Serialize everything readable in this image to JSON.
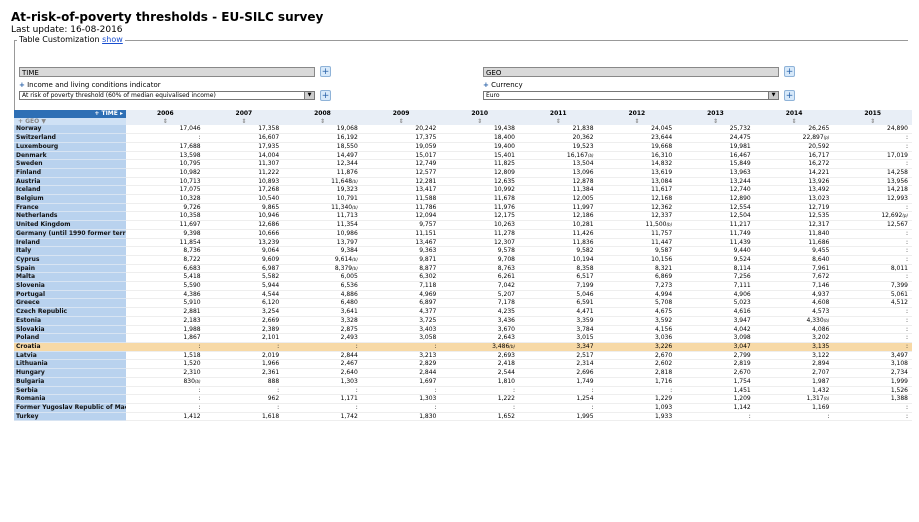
{
  "page": {
    "title": "At-risk-of-poverty thresholds - EU-SILC survey",
    "last_update": "Last update: 16-08-2016",
    "table_customization": "Table Customization",
    "show_link": "show"
  },
  "dims": {
    "time_label": "TIME",
    "geo_label": "GEO",
    "indicator_label": "Income and living conditions indicator",
    "indicator_value": "At risk of poverty threshold (60% of median equivalised income)",
    "currency_label": "Currency",
    "currency_value": "Euro"
  },
  "table": {
    "time_header": "TIME",
    "geo_header": "GEO",
    "sort_symbol": "⇕",
    "years": [
      "2006",
      "2007",
      "2008",
      "2009",
      "2010",
      "2011",
      "2012",
      "2013",
      "2014",
      "2015"
    ],
    "highlight_row": 25,
    "rows": [
      {
        "geo": "Norway",
        "v": [
          "17,046",
          "17,358",
          "19,068",
          "20,242",
          "19,438",
          "21,838",
          "24,045",
          "25,732",
          "26,265",
          "24,890"
        ]
      },
      {
        "geo": "Switzerland",
        "v": [
          ":",
          "16,607",
          "16,192",
          "17,375",
          "18,400",
          "20,362",
          "23,644",
          "24,475",
          "22,897 (p)",
          ":"
        ]
      },
      {
        "geo": "Luxembourg",
        "v": [
          "17,688",
          "17,935",
          "18,550",
          "19,059",
          "19,400",
          "19,523",
          "19,668",
          "19,981",
          "20,592",
          ":"
        ]
      },
      {
        "geo": "Denmark",
        "v": [
          "13,598",
          "14,004",
          "14,497",
          "15,017",
          "15,401",
          "16,167 (b)",
          "16,310",
          "16,467",
          "16,717",
          "17,019"
        ]
      },
      {
        "geo": "Sweden",
        "v": [
          "10,795",
          "11,307",
          "12,344",
          "12,749",
          "11,825",
          "13,504",
          "14,832",
          "15,849",
          "16,272",
          ":"
        ]
      },
      {
        "geo": "Finland",
        "v": [
          "10,982",
          "11,222",
          "11,876",
          "12,577",
          "12,809",
          "13,096",
          "13,619",
          "13,963",
          "14,221",
          "14,258"
        ]
      },
      {
        "geo": "Austria",
        "v": [
          "10,713",
          "10,893",
          "11,648 (b)",
          "12,281",
          "12,635",
          "12,878",
          "13,084",
          "13,244",
          "13,926",
          "13,956"
        ]
      },
      {
        "geo": "Iceland",
        "v": [
          "17,075",
          "17,268",
          "19,323",
          "13,417",
          "10,992",
          "11,384",
          "11,617",
          "12,740",
          "13,492",
          "14,218"
        ]
      },
      {
        "geo": "Belgium",
        "v": [
          "10,328",
          "10,540",
          "10,791",
          "11,588",
          "11,678",
          "12,005",
          "12,168",
          "12,890",
          "13,023",
          "12,993"
        ]
      },
      {
        "geo": "France",
        "v": [
          "9,726",
          "9,865",
          "11,340 (b)",
          "11,786",
          "11,976",
          "11,997",
          "12,362",
          "12,554",
          "12,719",
          ":"
        ]
      },
      {
        "geo": "Netherlands",
        "v": [
          "10,358",
          "10,946",
          "11,713",
          "12,094",
          "12,175",
          "12,186",
          "12,337",
          "12,504",
          "12,535",
          "12,692 (p)"
        ]
      },
      {
        "geo": "United Kingdom",
        "v": [
          "11,697",
          "12,686",
          "11,354",
          "9,757",
          "10,263",
          "10,281",
          "11,500 (b)",
          "11,217",
          "12,317",
          "12,567"
        ]
      },
      {
        "geo": "Germany (until 1990 former territory of the FRG)",
        "v": [
          "9,398",
          "10,666",
          "10,986",
          "11,151",
          "11,278",
          "11,426",
          "11,757",
          "11,749",
          "11,840",
          ":"
        ]
      },
      {
        "geo": "Ireland",
        "v": [
          "11,854",
          "13,239",
          "13,797",
          "13,467",
          "12,307",
          "11,836",
          "11,447",
          "11,439",
          "11,686",
          ":"
        ]
      },
      {
        "geo": "Italy",
        "v": [
          "8,736",
          "9,064",
          "9,384",
          "9,363",
          "9,578",
          "9,582",
          "9,587",
          "9,440",
          "9,455",
          ":"
        ]
      },
      {
        "geo": "Cyprus",
        "v": [
          "8,722",
          "9,609",
          "9,614 (b)",
          "9,871",
          "9,708",
          "10,194",
          "10,156",
          "9,524",
          "8,640",
          ":"
        ]
      },
      {
        "geo": "Spain",
        "v": [
          "6,683",
          "6,987",
          "8,379 (b)",
          "8,877",
          "8,763",
          "8,358",
          "8,321",
          "8,114",
          "7,961",
          "8,011"
        ]
      },
      {
        "geo": "Malta",
        "v": [
          "5,418",
          "5,582",
          "6,005",
          "6,302",
          "6,261",
          "6,517",
          "6,869",
          "7,256",
          "7,672",
          ":"
        ]
      },
      {
        "geo": "Slovenia",
        "v": [
          "5,590",
          "5,944",
          "6,536",
          "7,118",
          "7,042",
          "7,199",
          "7,273",
          "7,111",
          "7,146",
          "7,399"
        ]
      },
      {
        "geo": "Portugal",
        "v": [
          "4,386",
          "4,544",
          "4,886",
          "4,969",
          "5,207",
          "5,046",
          "4,994",
          "4,906",
          "4,937",
          "5,061"
        ]
      },
      {
        "geo": "Greece",
        "v": [
          "5,910",
          "6,120",
          "6,480",
          "6,897",
          "7,178",
          "6,591",
          "5,708",
          "5,023",
          "4,608",
          "4,512"
        ]
      },
      {
        "geo": "Czech Republic",
        "v": [
          "2,881",
          "3,254",
          "3,641",
          "4,377",
          "4,235",
          "4,471",
          "4,675",
          "4,616",
          "4,573",
          ":"
        ]
      },
      {
        "geo": "Estonia",
        "v": [
          "2,183",
          "2,669",
          "3,328",
          "3,725",
          "3,436",
          "3,359",
          "3,592",
          "3,947",
          "4,330 (b)",
          ":"
        ]
      },
      {
        "geo": "Slovakia",
        "v": [
          "1,988",
          "2,389",
          "2,875",
          "3,403",
          "3,670",
          "3,784",
          "4,156",
          "4,042",
          "4,086",
          ":"
        ]
      },
      {
        "geo": "Poland",
        "v": [
          "1,867",
          "2,101",
          "2,493",
          "3,058",
          "2,643",
          "3,015",
          "3,036",
          "3,098",
          "3,202",
          ":"
        ]
      },
      {
        "geo": "Croatia",
        "v": [
          ":",
          ":",
          ":",
          ":",
          "3,486 (b)",
          "3,347",
          "3,226",
          "3,047",
          "3,135",
          ":"
        ]
      },
      {
        "geo": "Latvia",
        "v": [
          "1,518",
          "2,019",
          "2,844",
          "3,213",
          "2,693",
          "2,517",
          "2,670",
          "2,799",
          "3,122",
          "3,497"
        ]
      },
      {
        "geo": "Lithuania",
        "v": [
          "1,520",
          "1,966",
          "2,467",
          "2,829",
          "2,418",
          "2,314",
          "2,602",
          "2,819",
          "2,894",
          "3,108"
        ]
      },
      {
        "geo": "Hungary",
        "v": [
          "2,310",
          "2,361",
          "2,640",
          "2,844",
          "2,544",
          "2,696",
          "2,818",
          "2,670",
          "2,707",
          "2,734"
        ]
      },
      {
        "geo": "Bulgaria",
        "v": [
          "830 (b)",
          "888",
          "1,303",
          "1,697",
          "1,810",
          "1,749",
          "1,716",
          "1,754",
          "1,987",
          "1,999"
        ]
      },
      {
        "geo": "Serbia",
        "v": [
          ":",
          ":",
          ":",
          ":",
          ":",
          ":",
          ":",
          "1,451",
          "1,432",
          "1,526"
        ]
      },
      {
        "geo": "Romania",
        "v": [
          ":",
          "962",
          "1,171",
          "1,303",
          "1,222",
          "1,254",
          "1,229",
          "1,209",
          "1,317 (b)",
          "1,388"
        ]
      },
      {
        "geo": "Former Yugoslav Republic of Macedonia, the",
        "v": [
          ":",
          ":",
          ":",
          ":",
          ":",
          ":",
          "1,093",
          "1,142",
          "1,169",
          ":"
        ]
      },
      {
        "geo": "Turkey",
        "v": [
          "1,412",
          "1,618",
          "1,742",
          "1,830",
          "1,652",
          "1,995",
          "1,933",
          ":",
          ":",
          ":"
        ]
      }
    ]
  },
  "colors": {
    "geo_column": "#b9d2ee",
    "highlight": "#f7d9a6",
    "header_blue": "#2e6fb5"
  }
}
